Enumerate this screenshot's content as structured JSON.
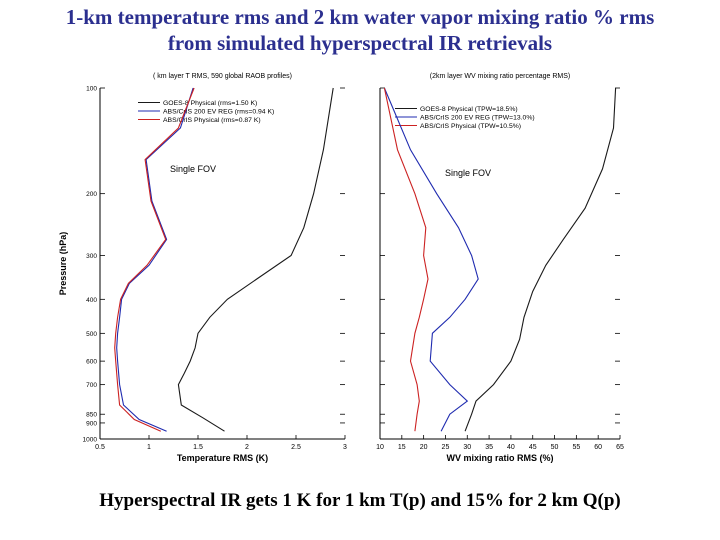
{
  "slide": {
    "title_line1": "1-km temperature rms and 2 km water vapor mixing ratio % rms",
    "title_line2": "from simulated hyperspectral IR retrievals",
    "footer": "Hyperspectral IR gets 1 K for 1 km T(p) and 15% for 2 km Q(p)"
  },
  "colors": {
    "goes": "#1a1a1a",
    "abs_reg": "#1f2bb0",
    "abs_phys": "#cc2222",
    "title": "#2b2f8f"
  },
  "chart_data": [
    {
      "type": "line",
      "title": "( km layer T RMS, 590 global RAOB profiles)",
      "annotation": "Single FOV",
      "xlabel": "Temperature RMS (K)",
      "ylabel": "Pressure (hPa)",
      "xlim": [
        0.5,
        3
      ],
      "ylim": [
        100,
        1000
      ],
      "y_scale": "log",
      "y_inverted": true,
      "x_ticks": [
        "0.5",
        "1",
        "1.5",
        "2",
        "2.5",
        "3"
      ],
      "y_ticks": [
        "100",
        "200",
        "300",
        "400",
        "500",
        "600",
        "700",
        "850",
        "900",
        "1000"
      ],
      "grid": false,
      "legend": "top-left",
      "series": [
        {
          "name": "GOES-8 Physical (rms=1.50 K)",
          "color_key": "goes",
          "x": [
            2.88,
            2.78,
            2.68,
            2.58,
            2.45,
            2.1,
            1.8,
            1.62,
            1.5,
            1.47,
            1.42,
            1.36,
            1.3,
            1.33,
            1.55,
            1.77
          ],
          "y": [
            100,
            150,
            200,
            250,
            300,
            350,
            400,
            450,
            500,
            550,
            600,
            650,
            700,
            800,
            870,
            950
          ]
        },
        {
          "name": "ABS/CrIS 200 EV REG (rms=0.94 K)",
          "color_key": "abs_reg",
          "x": [
            1.45,
            1.32,
            0.97,
            1.03,
            1.18,
            1.0,
            0.8,
            0.72,
            0.7,
            0.68,
            0.67,
            0.68,
            0.7,
            0.74,
            0.9,
            1.18
          ],
          "y": [
            100,
            130,
            160,
            210,
            270,
            320,
            360,
            400,
            450,
            500,
            550,
            600,
            700,
            800,
            880,
            950
          ]
        },
        {
          "name": "ABS/CrIS Physical (rms=0.87 K)",
          "color_key": "abs_phys",
          "x": [
            1.46,
            1.3,
            0.96,
            1.02,
            1.17,
            0.98,
            0.79,
            0.71,
            0.68,
            0.66,
            0.65,
            0.66,
            0.68,
            0.7,
            0.85,
            1.12
          ],
          "y": [
            100,
            130,
            160,
            210,
            270,
            320,
            360,
            400,
            450,
            500,
            550,
            600,
            700,
            800,
            880,
            950
          ]
        }
      ]
    },
    {
      "type": "line",
      "title": "(2km layer WV mixing ratio percentage RMS)",
      "annotation": "Single FOV",
      "xlabel": "WV mixing ratio RMS (%)",
      "xlim": [
        10,
        65
      ],
      "ylim": [
        100,
        1000
      ],
      "y_scale": "log",
      "y_inverted": true,
      "x_ticks": [
        "10",
        "15",
        "20",
        "25",
        "30",
        "35",
        "40",
        "45",
        "50",
        "55",
        "60",
        "65"
      ],
      "grid": false,
      "legend": "top-left",
      "series": [
        {
          "name": "GOES-8 Physical (TPW=18.5%)",
          "color_key": "goes",
          "x": [
            64,
            63.5,
            61,
            57,
            52,
            48,
            45,
            43,
            42,
            40,
            36,
            32,
            31,
            29.5
          ],
          "y": [
            100,
            130,
            170,
            220,
            270,
            320,
            380,
            450,
            520,
            600,
            700,
            780,
            850,
            950
          ]
        },
        {
          "name": "ABS/CrIS 200 EV REG (TPW=13.0%)",
          "color_key": "abs_reg",
          "x": [
            11,
            17,
            23,
            28,
            31,
            32.5,
            29.5,
            26,
            22,
            21.5,
            26,
            30,
            26,
            24
          ],
          "y": [
            100,
            150,
            200,
            250,
            300,
            350,
            400,
            450,
            500,
            600,
            700,
            780,
            850,
            950
          ]
        },
        {
          "name": "ABS/CrIS Physical (TPW=10.5%)",
          "color_key": "abs_phys",
          "x": [
            11,
            14,
            18,
            20.5,
            20,
            21,
            20,
            19,
            18,
            17,
            18.5,
            19,
            18.5,
            18
          ],
          "y": [
            100,
            150,
            200,
            250,
            300,
            350,
            400,
            450,
            500,
            600,
            700,
            780,
            850,
            950
          ]
        }
      ]
    }
  ]
}
